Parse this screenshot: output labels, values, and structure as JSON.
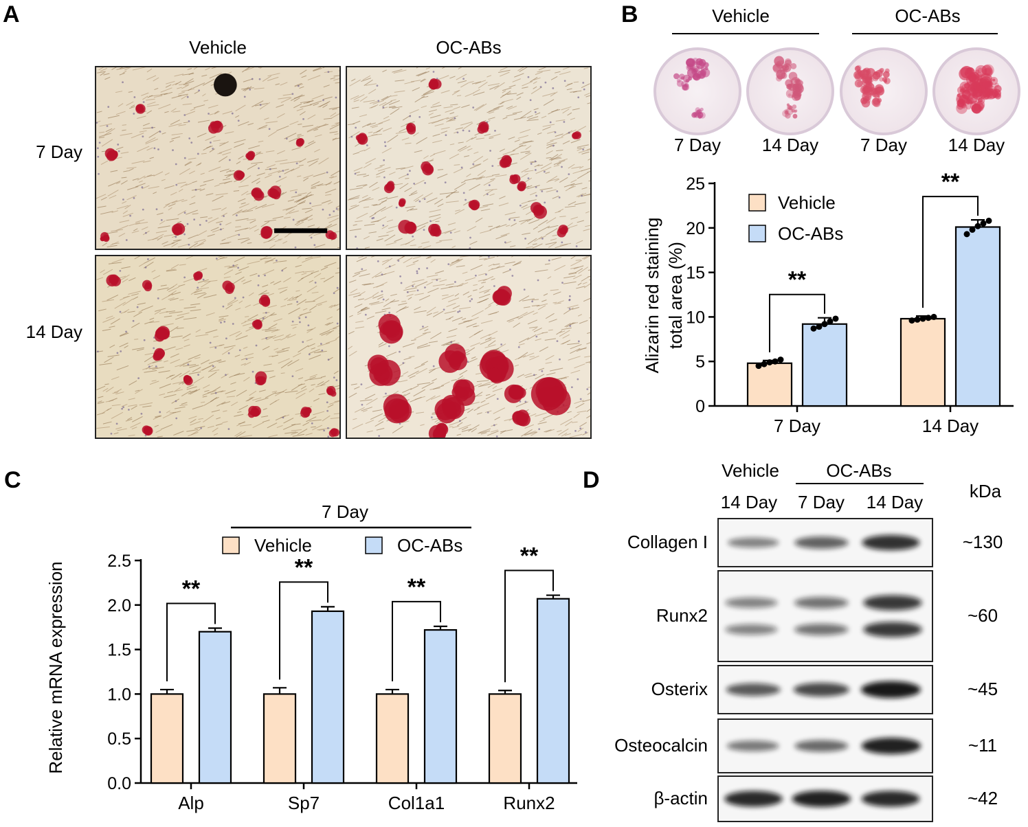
{
  "panels": {
    "A": {
      "letter": "A",
      "col_labels": [
        "Vehicle",
        "OC-ABs"
      ],
      "row_labels": [
        "7 Day",
        "14 Day"
      ]
    },
    "B": {
      "letter": "B",
      "group_labels": [
        "Vehicle",
        "OC-ABs"
      ],
      "dish_labels": [
        "7 Day",
        "14 Day",
        "7 Day",
        "14 Day"
      ]
    },
    "C": {
      "letter": "C"
    },
    "D": {
      "letter": "D",
      "header_vehicle": "Vehicle",
      "header_ocabs": "OC-ABs",
      "kda_label": "kDa",
      "lane_labels": [
        "14 Day",
        "7 Day",
        "14 Day"
      ],
      "proteins": [
        {
          "name": "Collagen I",
          "kda": "~130",
          "intensities": [
            0.35,
            0.55,
            0.85
          ]
        },
        {
          "name": "Runx2",
          "kda": "~60",
          "intensities": [
            0.35,
            0.45,
            0.8
          ]
        },
        {
          "name": "Osterix",
          "kda": "~45",
          "intensities": [
            0.6,
            0.7,
            1.0
          ]
        },
        {
          "name": "Osteocalcin",
          "kda": "~11",
          "intensities": [
            0.4,
            0.5,
            0.95
          ]
        },
        {
          "name": "β-actin",
          "kda": "~42",
          "intensities": [
            0.9,
            0.95,
            0.9
          ]
        }
      ]
    }
  },
  "colors": {
    "vehicle": "#fde0c5",
    "ocabs": "#c5dcf7",
    "stain": "#b8102a"
  },
  "chart_data": [
    {
      "type": "bar",
      "panel": "B",
      "categories": [
        "7 Day",
        "14 Day"
      ],
      "series": [
        {
          "name": "Vehicle",
          "values": [
            4.8,
            9.8
          ],
          "errors": [
            0.3,
            0.3
          ],
          "points": [
            [
              4.5,
              4.7,
              4.9,
              5.0,
              5.2
            ],
            [
              9.6,
              9.7,
              9.8,
              9.9,
              10.0
            ]
          ]
        },
        {
          "name": "OC-ABs",
          "values": [
            9.2,
            20.1
          ],
          "errors": [
            0.7,
            0.8
          ],
          "points": [
            [
              8.7,
              8.9,
              9.2,
              9.5,
              9.8
            ],
            [
              19.3,
              19.8,
              20.2,
              20.5,
              20.8
            ]
          ]
        }
      ],
      "significance": [
        "**",
        "**"
      ],
      "ylabel_lines": [
        "Alizarin red staining",
        "total area (%)"
      ],
      "ylim": [
        0,
        25
      ],
      "yticks": [
        "0",
        "5",
        "10",
        "15",
        "20",
        "25"
      ],
      "legend": [
        "Vehicle",
        "OC-ABs"
      ],
      "legend_position": "top-left"
    },
    {
      "type": "bar",
      "panel": "C",
      "title": "7 Day",
      "categories": [
        "Alp",
        "Sp7",
        "Col1a1",
        "Runx2"
      ],
      "series": [
        {
          "name": "Vehicle",
          "values": [
            1.0,
            1.0,
            1.0,
            1.0
          ],
          "errors": [
            0.05,
            0.07,
            0.05,
            0.04
          ]
        },
        {
          "name": "OC-ABs",
          "values": [
            1.7,
            1.93,
            1.72,
            2.07
          ],
          "errors": [
            0.04,
            0.05,
            0.04,
            0.04
          ]
        }
      ],
      "significance": [
        "**",
        "**",
        "**",
        "**"
      ],
      "ylabel": "Relative mRNA expression",
      "ylim": [
        0,
        2.5
      ],
      "yticks": [
        "0.0",
        "0.5",
        "1.0",
        "1.5",
        "2.0",
        "2.5"
      ],
      "legend": [
        "Vehicle",
        "OC-ABs"
      ],
      "legend_position": "top-center"
    }
  ]
}
